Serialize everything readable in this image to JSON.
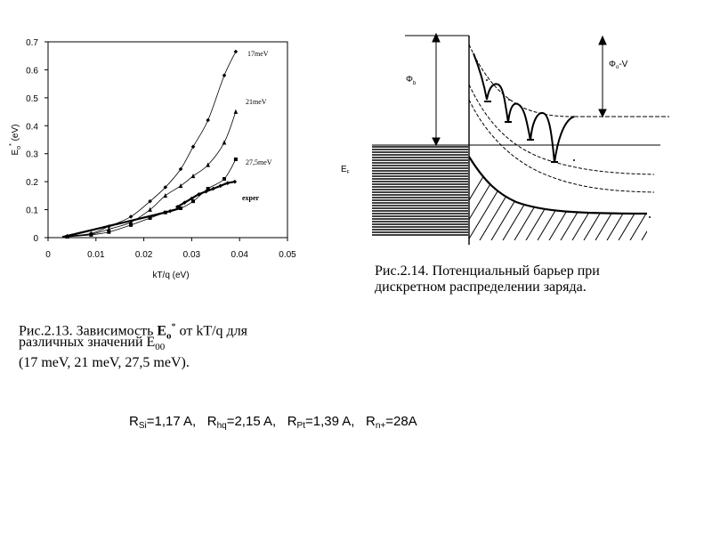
{
  "chart_data": {
    "type": "line",
    "title": "",
    "xlabel": "kT/q (eV)",
    "ylabel": "E",
    "ylabel_sub": "o",
    "ylabel_sup": "*",
    "ylabel_unit": " (eV)",
    "xlim": [
      0,
      0.05
    ],
    "ylim": [
      0,
      0.7
    ],
    "x_ticks": [
      "0",
      "0.01",
      "0.02",
      "0.03",
      "0.04",
      "0.05"
    ],
    "y_ticks": [
      "0",
      "0.1",
      "0.2",
      "0.3",
      "0.4",
      "0.5",
      "0.6",
      "0.7"
    ],
    "grid": false,
    "series": [
      {
        "name": "17meV",
        "marker": "diamond",
        "x": [
          0.004,
          0.009,
          0.0127,
          0.0173,
          0.0213,
          0.0245,
          0.0277,
          0.0303,
          0.0334,
          0.0368,
          0.0392
        ],
        "y": [
          0.005,
          0.015,
          0.04,
          0.075,
          0.13,
          0.18,
          0.245,
          0.325,
          0.42,
          0.58,
          0.665
        ]
      },
      {
        "name": "21meV",
        "marker": "triangle",
        "x": [
          0.004,
          0.009,
          0.0127,
          0.0173,
          0.0213,
          0.0245,
          0.0277,
          0.0303,
          0.0334,
          0.0368,
          0.0392
        ],
        "y": [
          0.005,
          0.012,
          0.03,
          0.055,
          0.1,
          0.15,
          0.185,
          0.22,
          0.26,
          0.34,
          0.45
        ]
      },
      {
        "name": "27,5meV",
        "marker": "square",
        "x": [
          0.004,
          0.009,
          0.0127,
          0.0173,
          0.0213,
          0.0245,
          0.0277,
          0.0303,
          0.0334,
          0.0368,
          0.0392
        ],
        "y": [
          0.003,
          0.01,
          0.02,
          0.045,
          0.07,
          0.09,
          0.105,
          0.13,
          0.175,
          0.21,
          0.28
        ]
      },
      {
        "name": "exper",
        "marker": "diamond",
        "x": [
          0.0255,
          0.027,
          0.0285,
          0.03,
          0.0315,
          0.033,
          0.0345,
          0.036,
          0.0375,
          0.039
        ],
        "y": [
          0.095,
          0.11,
          0.125,
          0.14,
          0.155,
          0.165,
          0.175,
          0.185,
          0.195,
          0.2
        ]
      }
    ]
  },
  "diagram": {
    "phi_b": "Φ",
    "phi_b_sub": "b",
    "phi_o": "Φ",
    "phi_o_sub": "o",
    "phi_o_suffix": "-V",
    "ef": "E",
    "ef_sub": "F"
  },
  "captions": {
    "fig14_line1": "Рис.2.14. Потенциальный барьер при",
    "fig14_line2": "дискретном распределении  заряда.",
    "fig13_line1_a": "Рис.2.13. Зависимость ",
    "fig13_line1_e": "E",
    "fig13_line1_e_sub": "o",
    "fig13_line1_e_sup": "*",
    "fig13_line1_b": "от kT/q для",
    "fig13_line2_a": "различных значений E",
    "fig13_line2_sub": "00",
    "fig13_line3": "(17 meV, 21 meV, 27,5 meV)."
  },
  "radii": {
    "r1": "R",
    "r1_sub": "Si",
    "r1_val": "=1,17 A,",
    "r2": "R",
    "r2_sub": "hq",
    "r2_val": "=2,15 A,",
    "r3": "R",
    "r3_sub": "Pt",
    "r3_val": "=1,39 A,",
    "r4": "R",
    "r4_sub": "n+",
    "r4_val": "=28A"
  }
}
